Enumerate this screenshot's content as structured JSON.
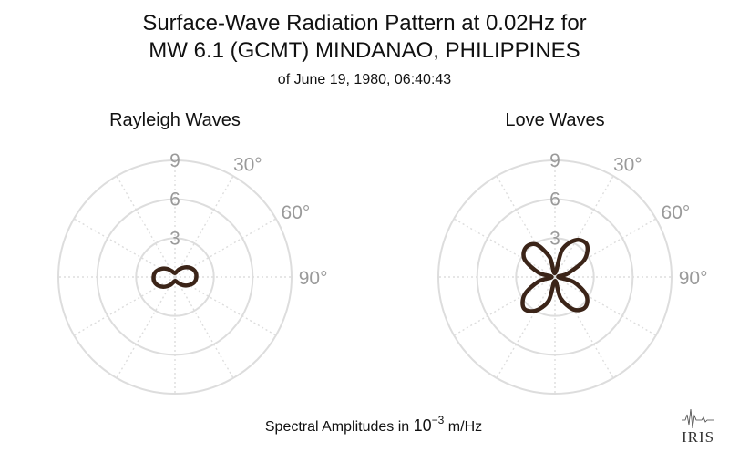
{
  "title_line1": "Surface-Wave Radiation Pattern at 0.02Hz for",
  "title_line2": "MW 6.1 (GCMT) MINDANAO, PHILIPPINES",
  "subtitle": "of June 19, 1980, 06:40:43",
  "footer": {
    "prefix": "Spectral Amplitudes in ",
    "base": "10",
    "exponent": "−3",
    "suffix": " m/Hz"
  },
  "logo_text": "IRIS",
  "colors": {
    "trace": "#3b2418",
    "grid": "#dddddd",
    "tick": "#9a9a9a"
  },
  "chart_data": [
    {
      "type": "polar-line",
      "title": "Rayleigh Waves",
      "r_ticks": [
        3,
        6,
        9
      ],
      "r_tick_labels": [
        "3",
        "6",
        "9"
      ],
      "rlim": [
        0,
        9
      ],
      "angle_tick_labels": [
        "30°",
        "60°",
        "90°"
      ],
      "angle_label_degrees": [
        30,
        60,
        90
      ],
      "theta_direction": "clockwise",
      "theta_zero": "north",
      "grid": true,
      "series": [
        {
          "theta_deg": [
            0,
            15,
            30,
            45,
            60,
            75,
            90,
            105,
            120,
            135,
            150,
            165,
            180,
            195,
            210,
            225,
            240,
            255,
            270,
            285,
            300,
            315,
            330,
            345
          ],
          "r": [
            0.3,
            0.4,
            0.7,
            1.05,
            1.4,
            1.62,
            1.65,
            1.55,
            1.25,
            0.9,
            0.55,
            0.35,
            0.3,
            0.4,
            0.7,
            1.05,
            1.4,
            1.62,
            1.65,
            1.55,
            1.25,
            0.9,
            0.55,
            0.35
          ]
        }
      ]
    },
    {
      "type": "polar-line",
      "title": "Love Waves",
      "r_ticks": [
        3,
        6,
        9
      ],
      "r_tick_labels": [
        "3",
        "6",
        "9"
      ],
      "rlim": [
        0,
        9
      ],
      "angle_tick_labels": [
        "30°",
        "60°",
        "90°"
      ],
      "angle_label_degrees": [
        30,
        60,
        90
      ],
      "theta_direction": "clockwise",
      "theta_zero": "north",
      "grid": true,
      "series": [
        {
          "theta_deg": [
            0,
            15,
            30,
            45,
            60,
            75,
            90,
            105,
            120,
            135,
            150,
            165,
            180,
            195,
            210,
            225,
            240,
            255,
            270,
            285,
            300,
            315,
            330,
            345
          ],
          "r": [
            0.3,
            2.2,
            3.3,
            3.5,
            2.6,
            1.0,
            0.25,
            1.5,
            2.8,
            3.3,
            2.9,
            1.7,
            0.3,
            1.9,
            3.0,
            3.4,
            2.7,
            1.3,
            0.25,
            1.3,
            2.7,
            3.2,
            2.9,
            1.6
          ]
        }
      ]
    }
  ]
}
